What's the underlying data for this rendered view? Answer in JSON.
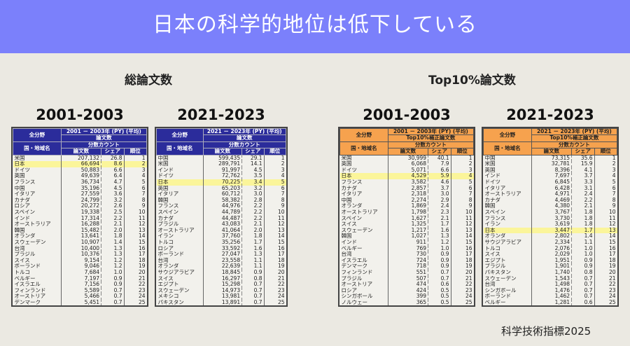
{
  "title": "日本の科学的地位は低下している",
  "sections": {
    "total": "総論文数",
    "top10": "Top10%論文数"
  },
  "footer": "科学技術指標2025",
  "highlight_color": "#fbf59a",
  "tables": [
    {
      "period": "2001-2003",
      "h_field": "全分野",
      "h_years": "2001 － 2003年 (PY) (平均)",
      "h_metric": "論文数",
      "h_region": "国・地域名",
      "h_count": "分数カウント",
      "h_papers": "論文数",
      "h_share": "シェア",
      "h_rank": "順位",
      "rows": [
        [
          "米国",
          "207,132",
          "26.8",
          "1"
        ],
        [
          "日本",
          "66,694",
          "8.6",
          "2"
        ],
        [
          "ドイツ",
          "50,883",
          "6.6",
          "3"
        ],
        [
          "英国",
          "49,639",
          "6.4",
          "4"
        ],
        [
          "フランス",
          "36,734",
          "4.7",
          "5"
        ],
        [
          "中国",
          "35,196",
          "4.5",
          "6"
        ],
        [
          "イタリア",
          "27,559",
          "3.6",
          "7"
        ],
        [
          "カナダ",
          "24,799",
          "3.2",
          "8"
        ],
        [
          "ロシア",
          "20,272",
          "2.6",
          "9"
        ],
        [
          "スペイン",
          "19,338",
          "2.5",
          "10"
        ],
        [
          "インド",
          "17,314",
          "2.2",
          "11"
        ],
        [
          "オーストラリア",
          "16,288",
          "2.1",
          "12"
        ],
        [
          "韓国",
          "15,482",
          "2.0",
          "13"
        ],
        [
          "オランダ",
          "13,641",
          "1.8",
          "14"
        ],
        [
          "スウェーデン",
          "10,907",
          "1.4",
          "15"
        ],
        [
          "台湾",
          "10,400",
          "1.3",
          "16"
        ],
        [
          "ブラジル",
          "10,376",
          "1.3",
          "17"
        ],
        [
          "スイス",
          "9,154",
          "1.2",
          "18"
        ],
        [
          "ポーランド",
          "9,046",
          "1.2",
          "19"
        ],
        [
          "トルコ",
          "7,684",
          "1.0",
          "20"
        ],
        [
          "ベルギー",
          "7,197",
          "0.9",
          "21"
        ],
        [
          "イスラエル",
          "7,156",
          "0.9",
          "22"
        ],
        [
          "フィンランド",
          "5,589",
          "0.7",
          "23"
        ],
        [
          "オーストリア",
          "5,466",
          "0.7",
          "24"
        ],
        [
          "デンマーク",
          "5,451",
          "0.7",
          "25"
        ]
      ]
    },
    {
      "period": "2021-2023",
      "h_field": "全分野",
      "h_years": "2021 － 2023年 (PY) (平均)",
      "h_metric": "論文数",
      "h_region": "国・地域名",
      "h_count": "分数カウント",
      "h_papers": "論文数",
      "h_share": "シェア",
      "h_rank": "順位",
      "rows": [
        [
          "中国",
          "599,435",
          "29.1",
          "1"
        ],
        [
          "米国",
          "289,791",
          "14.1",
          "2"
        ],
        [
          "インド",
          "91,997",
          "4.5",
          "3"
        ],
        [
          "ドイツ",
          "72,762",
          "3.5",
          "4"
        ],
        [
          "日本",
          "70,225",
          "3.4",
          "5"
        ],
        [
          "英国",
          "65,203",
          "3.2",
          "6"
        ],
        [
          "イタリア",
          "60,712",
          "3.0",
          "7"
        ],
        [
          "韓国",
          "58,382",
          "2.8",
          "8"
        ],
        [
          "フランス",
          "44,976",
          "2.2",
          "9"
        ],
        [
          "スペイン",
          "44,789",
          "2.2",
          "10"
        ],
        [
          "カナダ",
          "44,487",
          "2.2",
          "11"
        ],
        [
          "ブラジル",
          "43,083",
          "2.1",
          "12"
        ],
        [
          "オーストラリア",
          "41,064",
          "2.0",
          "13"
        ],
        [
          "イラン",
          "37,760",
          "1.8",
          "14"
        ],
        [
          "トルコ",
          "35,256",
          "1.7",
          "15"
        ],
        [
          "ロシア",
          "33,592",
          "1.6",
          "16"
        ],
        [
          "ポーランド",
          "27,047",
          "1.3",
          "17"
        ],
        [
          "台湾",
          "23,558",
          "1.1",
          "18"
        ],
        [
          "オランダ",
          "22,639",
          "1.1",
          "19"
        ],
        [
          "サウジアラビア",
          "18,845",
          "0.9",
          "20"
        ],
        [
          "スイス",
          "16,297",
          "0.8",
          "21"
        ],
        [
          "エジプト",
          "15,298",
          "0.7",
          "22"
        ],
        [
          "スウェーデン",
          "14,973",
          "0.7",
          "23"
        ],
        [
          "メキシコ",
          "13,981",
          "0.7",
          "24"
        ],
        [
          "パキスタン",
          "13,891",
          "0.7",
          "25"
        ]
      ]
    },
    {
      "period": "2001-2003",
      "h_field": "全分野",
      "h_years": "2001 － 2003年 (PY) (平均)",
      "h_metric": "Top10%補正論文数",
      "h_region": "国・地域名",
      "h_count": "分数カウント",
      "h_papers": "論文数",
      "h_share": "シェア",
      "h_rank": "順位",
      "rows": [
        [
          "米国",
          "30,999",
          "40.1",
          "1"
        ],
        [
          "英国",
          "6,068",
          "7.9",
          "2"
        ],
        [
          "ドイツ",
          "5,071",
          "6.6",
          "3"
        ],
        [
          "日本",
          "4,529",
          "5.9",
          "4"
        ],
        [
          "フランス",
          "3,582",
          "4.6",
          "5"
        ],
        [
          "カナダ",
          "2,857",
          "3.7",
          "6"
        ],
        [
          "イタリア",
          "2,318",
          "3.0",
          "7"
        ],
        [
          "中国",
          "2,274",
          "2.9",
          "8"
        ],
        [
          "オランダ",
          "1,869",
          "2.4",
          "9"
        ],
        [
          "オーストラリア",
          "1,798",
          "2.3",
          "10"
        ],
        [
          "スペイン",
          "1,627",
          "2.1",
          "11"
        ],
        [
          "スイス",
          "1,325",
          "1.7",
          "12"
        ],
        [
          "スウェーデン",
          "1,217",
          "1.6",
          "13"
        ],
        [
          "韓国",
          "1,027",
          "1.3",
          "14"
        ],
        [
          "インド",
          "911",
          "1.2",
          "15"
        ],
        [
          "ベルギー",
          "769",
          "1.0",
          "16"
        ],
        [
          "台湾",
          "730",
          "0.9",
          "17"
        ],
        [
          "イスラエル",
          "724",
          "0.9",
          "18"
        ],
        [
          "デンマーク",
          "718",
          "0.9",
          "19"
        ],
        [
          "フィンランド",
          "551",
          "0.7",
          "20"
        ],
        [
          "ブラジル",
          "507",
          "0.7",
          "21"
        ],
        [
          "オーストリア",
          "474",
          "0.6",
          "22"
        ],
        [
          "ロシア",
          "424",
          "0.5",
          "23"
        ],
        [
          "シンガポール",
          "399",
          "0.5",
          "24"
        ],
        [
          "ノルウェー",
          "365",
          "0.5",
          "25"
        ]
      ]
    },
    {
      "period": "2021-2023",
      "h_field": "全分野",
      "h_years": "2021 － 2023年 (PY) (平均)",
      "h_metric": "Top10%補正論文数",
      "h_region": "国・地域名",
      "h_count": "分数カウント",
      "h_papers": "論文数",
      "h_share": "シェア",
      "h_rank": "順位",
      "rows": [
        [
          "中国",
          "73,315",
          "35.6",
          "1"
        ],
        [
          "米国",
          "32,781",
          "15.9",
          "2"
        ],
        [
          "英国",
          "8,396",
          "4.1",
          "3"
        ],
        [
          "インド",
          "7,697",
          "3.7",
          "4"
        ],
        [
          "ドイツ",
          "6,845",
          "3.3",
          "5"
        ],
        [
          "イタリア",
          "6,428",
          "3.1",
          "6"
        ],
        [
          "オーストラリア",
          "4,971",
          "2.4",
          "7"
        ],
        [
          "カナダ",
          "4,469",
          "2.2",
          "8"
        ],
        [
          "韓国",
          "4,380",
          "2.1",
          "9"
        ],
        [
          "スペイン",
          "3,767",
          "1.8",
          "10"
        ],
        [
          "フランス",
          "3,730",
          "1.8",
          "11"
        ],
        [
          "イラン",
          "3,619",
          "1.8",
          "12"
        ],
        [
          "日本",
          "3,447",
          "1.7",
          "13"
        ],
        [
          "オランダ",
          "2,802",
          "1.4",
          "14"
        ],
        [
          "サウジアラビア",
          "2,334",
          "1.1",
          "15"
        ],
        [
          "トルコ",
          "2,076",
          "1.0",
          "16"
        ],
        [
          "スイス",
          "2,029",
          "1.0",
          "17"
        ],
        [
          "エジプト",
          "1,951",
          "0.9",
          "18"
        ],
        [
          "ブラジル",
          "1,901",
          "0.9",
          "19"
        ],
        [
          "パキスタン",
          "1,740",
          "0.8",
          "20"
        ],
        [
          "スウェーデン",
          "1,543",
          "0.7",
          "21"
        ],
        [
          "台湾",
          "1,498",
          "0.7",
          "22"
        ],
        [
          "シンガポール",
          "1,476",
          "0.7",
          "23"
        ],
        [
          "ポーランド",
          "1,462",
          "0.7",
          "24"
        ],
        [
          "ベルギー",
          "1,281",
          "0.6",
          "25"
        ]
      ]
    }
  ]
}
